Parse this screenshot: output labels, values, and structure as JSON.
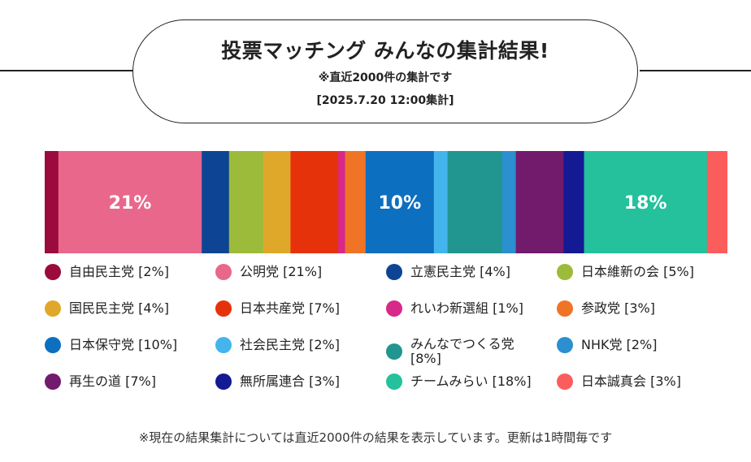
{
  "header": {
    "title": "投票マッチング みんなの集計結果!",
    "subtitle": "※直近2000件の集計です",
    "date": "[2025.7.20 12:00集計]"
  },
  "chart_data": {
    "type": "bar",
    "orientation": "stacked-horizontal-100",
    "categories": [
      "自由民主党",
      "公明党",
      "立憲民主党",
      "日本維新の会",
      "国民民主党",
      "日本共産党",
      "れいわ新選組",
      "参政党",
      "日本保守党",
      "社会民主党",
      "みんなでつくる党",
      "NHK党",
      "再生の道",
      "無所属連合",
      "チームみらい",
      "日本誠真会"
    ],
    "values": [
      2,
      21,
      4,
      5,
      4,
      7,
      1,
      3,
      10,
      2,
      8,
      2,
      7,
      3,
      18,
      3
    ],
    "colors": [
      "#9b0b3d",
      "#e9678a",
      "#0d4594",
      "#9dbb3a",
      "#e0a82a",
      "#e6320a",
      "#d8288a",
      "#ef7426",
      "#0d6fbf",
      "#43b5ec",
      "#21958f",
      "#2b8fd0",
      "#721a6b",
      "#141a94",
      "#24c19c",
      "#fb5d5d"
    ],
    "data_labels": [
      {
        "index": 1,
        "text": "21%"
      },
      {
        "index": 8,
        "text": "10%"
      },
      {
        "index": 14,
        "text": "18%"
      }
    ]
  },
  "legend": [
    {
      "label": "自由民主党 [2%]",
      "color": "#9b0b3d"
    },
    {
      "label": "公明党 [21%]",
      "color": "#e9678a"
    },
    {
      "label": "立憲民主党 [4%]",
      "color": "#0d4594"
    },
    {
      "label": "日本維新の会 [5%]",
      "color": "#9dbb3a"
    },
    {
      "label": "国民民主党 [4%]",
      "color": "#e0a82a"
    },
    {
      "label": "日本共産党 [7%]",
      "color": "#e6320a"
    },
    {
      "label": "れいわ新選組 [1%]",
      "color": "#d8288a"
    },
    {
      "label": "参政党 [3%]",
      "color": "#ef7426"
    },
    {
      "label": "日本保守党 [10%]",
      "color": "#0d6fbf"
    },
    {
      "label": "社会民主党 [2%]",
      "color": "#43b5ec"
    },
    {
      "label": "みんなでつくる党 [8%]",
      "color": "#21958f"
    },
    {
      "label": "NHK党 [2%]",
      "color": "#2b8fd0"
    },
    {
      "label": "再生の道 [7%]",
      "color": "#721a6b"
    },
    {
      "label": "無所属連合 [3%]",
      "color": "#141a94"
    },
    {
      "label": "チームみらい [18%]",
      "color": "#24c19c"
    },
    {
      "label": "日本誠真会 [3%]",
      "color": "#fb5d5d"
    }
  ],
  "footnote": "※現在の結果集計については直近2000件の結果を表示しています。更新は1時間毎です"
}
